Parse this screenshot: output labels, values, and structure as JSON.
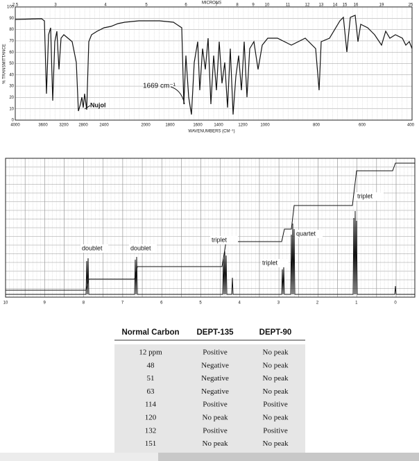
{
  "ir_spectrum": {
    "top_axis_label": "MICRONS",
    "microns": [
      "2.5",
      "3",
      "4",
      "5",
      "6",
      "7",
      "8",
      "9",
      "10",
      "11",
      "12",
      "13",
      "14",
      "15",
      "16",
      "19",
      "25"
    ],
    "y_axis_label": "% TRANSMITTANCE",
    "transmittance_ticks": [
      "100",
      "90",
      "80",
      "70",
      "60",
      "50",
      "40",
      "30",
      "20",
      "10",
      "0"
    ],
    "wavenumbers": [
      "4000",
      "3600",
      "3200",
      "2800",
      "2400",
      "2000",
      "1800",
      "1600",
      "1400",
      "1200",
      "1000",
      "800",
      "600",
      "400"
    ],
    "x_axis_label": "WAVENUMBERS (CM⁻¹)",
    "annotations": [
      "Nujol",
      "1669 cm⁻¹"
    ]
  },
  "nmr_spectrum": {
    "ppm_ticks": [
      "10",
      "9",
      "8",
      "7",
      "6",
      "5",
      "4",
      "3",
      "2",
      "1",
      "0"
    ],
    "peak_labels": [
      "doublet",
      "doublet",
      "triplet",
      "triplet",
      "quartet",
      "triplet"
    ]
  },
  "table": {
    "header": [
      "Normal Carbon",
      "DEPT-135",
      "DEPT-90"
    ],
    "rows": [
      [
        "12 ppm",
        "Positive",
        "No peak"
      ],
      [
        "48",
        "Negative",
        "No peak"
      ],
      [
        "51",
        "Negative",
        "No peak"
      ],
      [
        "63",
        "Negative",
        "No peak"
      ],
      [
        "114",
        "Positive",
        "Positive"
      ],
      [
        "120",
        "No peak",
        "No peak"
      ],
      [
        "132",
        "Positive",
        "Positive"
      ],
      [
        "151",
        "No peak",
        "No peak"
      ]
    ]
  }
}
